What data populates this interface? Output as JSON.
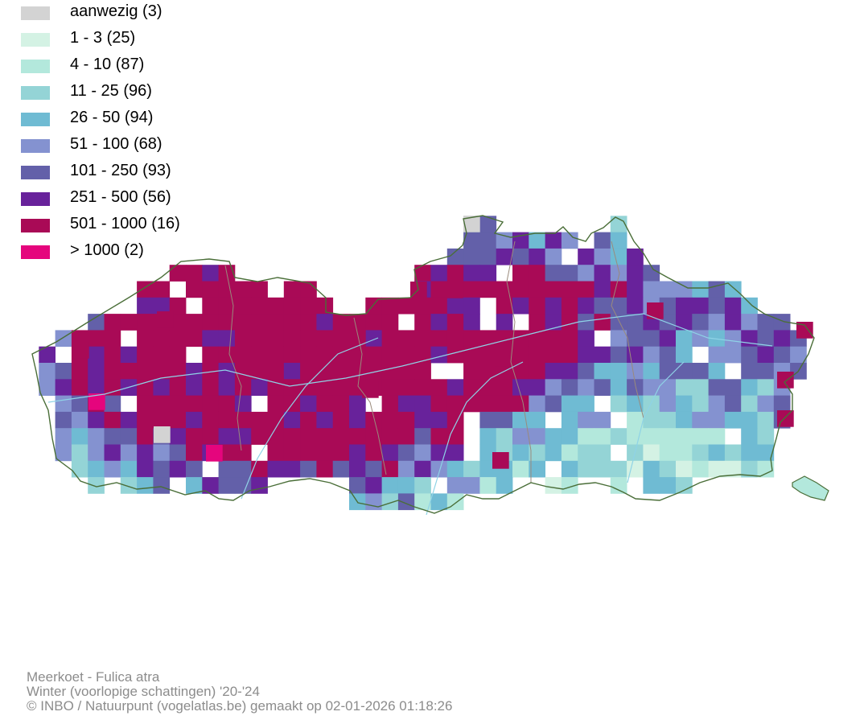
{
  "legend": {
    "items": [
      {
        "label": "aanwezig (3)",
        "color": "#d3d3d3"
      },
      {
        "label": "1 - 3 (25)",
        "color": "#d4f2e4"
      },
      {
        "label": "4 - 10 (87)",
        "color": "#b3e8dc"
      },
      {
        "label": "11 - 25 (96)",
        "color": "#94d4d6"
      },
      {
        "label": "26 - 50 (94)",
        "color": "#6fbbd3"
      },
      {
        "label": "51 - 100 (68)",
        "color": "#8492d0"
      },
      {
        "label": "101 - 250 (93)",
        "color": "#6360a9"
      },
      {
        "label": "251 - 500 (56)",
        "color": "#68229b"
      },
      {
        "label": "501 - 1000 (16)",
        "color": "#a90a56"
      },
      {
        "label": "> 1000 (2)",
        "color": "#e5057d"
      }
    ]
  },
  "map": {
    "border_color": "#4a6e38",
    "river_color": "#8fd3e6",
    "province_color": "#9a8a7c"
  },
  "caption": {
    "species": "Meerkoet - Fulica atra",
    "period": "Winter (voorlopige schattingen) '20-'24",
    "credit": "© INBO / Natuurpunt (vogelatlas.be) gemaakt op 02-01-2026 01:18:26"
  }
}
